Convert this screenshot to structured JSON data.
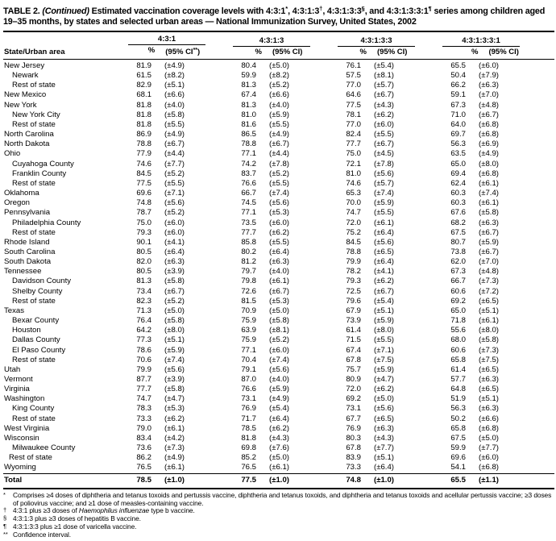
{
  "page": {
    "background": "#ffffff",
    "text_color": "#000000"
  },
  "table_title": {
    "segments": [
      {
        "text": "TABLE 2. ",
        "style": "bold"
      },
      {
        "text": "(Continued)",
        "style": "bold-italic"
      },
      {
        "text": " Estimated vaccination coverage levels with 4:3:1",
        "style": "bold"
      },
      {
        "text": "*",
        "style": "sup"
      },
      {
        "text": ", 4:3:1:3",
        "style": "bold"
      },
      {
        "text": "†",
        "style": "sup"
      },
      {
        "text": ", 4:3:1:3:3",
        "style": "bold"
      },
      {
        "text": "§",
        "style": "sup"
      },
      {
        "text": ", and 4:3:1:3:3:1",
        "style": "bold"
      },
      {
        "text": "¶",
        "style": "sup"
      },
      {
        "text": " series among children aged 19–35 months, by states and selected urban areas — National Immunization Survey, United States, 2002",
        "style": "bold"
      }
    ]
  },
  "table": {
    "stub_header": "State/Urban area",
    "column_groups": [
      {
        "label": "4:3:1",
        "pct_header": "%",
        "ci_header_pre": "(95% CI",
        "ci_header_sup": "**",
        "ci_header_post": ")"
      },
      {
        "label": "4:3:1:3",
        "pct_header": "%",
        "ci_header_pre": "(95% CI",
        "ci_header_sup": "",
        "ci_header_post": ")"
      },
      {
        "label": "4:3:1:3:3",
        "pct_header": "%",
        "ci_header_pre": "(95% CI",
        "ci_header_sup": "",
        "ci_header_post": ")"
      },
      {
        "label": "4:3:1:3:3:1",
        "pct_header": "%",
        "ci_header_pre": "(95% CI",
        "ci_header_sup": "",
        "ci_header_post": ")"
      }
    ],
    "rows": [
      {
        "label": "New Jersey",
        "indent": 0,
        "values": [
          "81.9",
          "(±4.9)",
          "80.4",
          "(±5.0)",
          "76.1",
          "(±5.4)",
          "65.5",
          "(±6.0)"
        ]
      },
      {
        "label": "Newark",
        "indent": 10,
        "values": [
          "61.5",
          "(±8.2)",
          "59.9",
          "(±8.2)",
          "57.5",
          "(±8.1)",
          "50.4",
          "(±7.9)"
        ]
      },
      {
        "label": "Rest of state",
        "indent": 10,
        "values": [
          "82.9",
          "(±5.1)",
          "81.3",
          "(±5.2)",
          "77.0",
          "(±5.7)",
          "66.2",
          "(±6.3)"
        ]
      },
      {
        "label": "New Mexico",
        "indent": 0,
        "values": [
          "68.1",
          "(±6.6)",
          "67.4",
          "(±6.6)",
          "64.6",
          "(±6.7)",
          "59.1",
          "(±7.0)"
        ]
      },
      {
        "label": "New York",
        "indent": 0,
        "values": [
          "81.8",
          "(±4.0)",
          "81.3",
          "(±4.0)",
          "77.5",
          "(±4.3)",
          "67.3",
          "(±4.8)"
        ]
      },
      {
        "label": "New York City",
        "indent": 10,
        "values": [
          "81.8",
          "(±5.8)",
          "81.0",
          "(±5.9)",
          "78.1",
          "(±6.2)",
          "71.0",
          "(±6.7)"
        ]
      },
      {
        "label": "Rest of state",
        "indent": 10,
        "values": [
          "81.8",
          "(±5.5)",
          "81.6",
          "(±5.5)",
          "77.0",
          "(±6.0)",
          "64.0",
          "(±6.8)"
        ]
      },
      {
        "label": "North Carolina",
        "indent": 0,
        "values": [
          "86.9",
          "(±4.9)",
          "86.5",
          "(±4.9)",
          "82.4",
          "(±5.5)",
          "69.7",
          "(±6.8)"
        ]
      },
      {
        "label": "North Dakota",
        "indent": 0,
        "values": [
          "78.8",
          "(±6.7)",
          "78.8",
          "(±6.7)",
          "77.7",
          "(±6.7)",
          "56.3",
          "(±6.9)"
        ]
      },
      {
        "label": "Ohio",
        "indent": 0,
        "values": [
          "77.9",
          "(±4.4)",
          "77.1",
          "(±4.4)",
          "75.0",
          "(±4.5)",
          "63.5",
          "(±4.9)"
        ]
      },
      {
        "label": "Cuyahoga County",
        "indent": 10,
        "values": [
          "74.6",
          "(±7.7)",
          "74.2",
          "(±7.8)",
          "72.1",
          "(±7.8)",
          "65.0",
          "(±8.0)"
        ]
      },
      {
        "label": "Franklin County",
        "indent": 10,
        "values": [
          "84.5",
          "(±5.2)",
          "83.7",
          "(±5.2)",
          "81.0",
          "(±5.6)",
          "69.4",
          "(±6.8)"
        ]
      },
      {
        "label": "Rest of state",
        "indent": 10,
        "values": [
          "77.5",
          "(±5.5)",
          "76.6",
          "(±5.5)",
          "74.6",
          "(±5.7)",
          "62.4",
          "(±6.1)"
        ]
      },
      {
        "label": "Oklahoma",
        "indent": 0,
        "values": [
          "69.6",
          "(±7.1)",
          "66.7",
          "(±7.4)",
          "65.3",
          "(±7.4)",
          "60.3",
          "(±7.4)"
        ]
      },
      {
        "label": "Oregon",
        "indent": 0,
        "values": [
          "74.8",
          "(±5.6)",
          "74.5",
          "(±5.6)",
          "70.0",
          "(±5.9)",
          "60.3",
          "(±6.1)"
        ]
      },
      {
        "label": "Pennsylvania",
        "indent": 0,
        "values": [
          "78.7",
          "(±5.2)",
          "77.1",
          "(±5.3)",
          "74.7",
          "(±5.5)",
          "67.6",
          "(±5.8)"
        ]
      },
      {
        "label": "Philadelphia County",
        "indent": 10,
        "values": [
          "75.0",
          "(±6.0)",
          "73.5",
          "(±6.0)",
          "72.0",
          "(±6.1)",
          "68.2",
          "(±6.3)"
        ]
      },
      {
        "label": "Rest of state",
        "indent": 10,
        "values": [
          "79.3",
          "(±6.0)",
          "77.7",
          "(±6.2)",
          "75.2",
          "(±6.4)",
          "67.5",
          "(±6.7)"
        ]
      },
      {
        "label": "Rhode Island",
        "indent": 0,
        "values": [
          "90.1",
          "(±4.1)",
          "85.8",
          "(±5.5)",
          "84.5",
          "(±5.6)",
          "80.7",
          "(±5.9)"
        ]
      },
      {
        "label": "South Carolina",
        "indent": 0,
        "values": [
          "80.5",
          "(±6.4)",
          "80.2",
          "(±6.4)",
          "78.8",
          "(±6.5)",
          "73.8",
          "(±6.7)"
        ]
      },
      {
        "label": "South Dakota",
        "indent": 0,
        "values": [
          "82.0",
          "(±6.3)",
          "81.2",
          "(±6.3)",
          "79.9",
          "(±6.4)",
          "62.0",
          "(±7.0)"
        ]
      },
      {
        "label": "Tennessee",
        "indent": 0,
        "values": [
          "80.5",
          "(±3.9)",
          "79.7",
          "(±4.0)",
          "78.2",
          "(±4.1)",
          "67.3",
          "(±4.8)"
        ]
      },
      {
        "label": "Davidson County",
        "indent": 10,
        "values": [
          "81.3",
          "(±5.8)",
          "79.8",
          "(±6.1)",
          "79.3",
          "(±6.2)",
          "66.7",
          "(±7.3)"
        ]
      },
      {
        "label": "Shelby County",
        "indent": 10,
        "values": [
          "73.4",
          "(±6.7)",
          "72.6",
          "(±6.7)",
          "72.5",
          "(±6.7)",
          "60.6",
          "(±7.2)"
        ]
      },
      {
        "label": "Rest of state",
        "indent": 10,
        "values": [
          "82.3",
          "(±5.2)",
          "81.5",
          "(±5.3)",
          "79.6",
          "(±5.4)",
          "69.2",
          "(±6.5)"
        ]
      },
      {
        "label": "Texas",
        "indent": 0,
        "values": [
          "71.3",
          "(±5.0)",
          "70.9",
          "(±5.0)",
          "67.9",
          "(±5.1)",
          "65.0",
          "(±5.1)"
        ]
      },
      {
        "label": "Bexar County",
        "indent": 10,
        "values": [
          "76.4",
          "(±5.8)",
          "75.9",
          "(±5.8)",
          "73.9",
          "(±5.9)",
          "71.8",
          "(±6.1)"
        ]
      },
      {
        "label": "Houston",
        "indent": 10,
        "values": [
          "64.2",
          "(±8.0)",
          "63.9",
          "(±8.1)",
          "61.4",
          "(±8.0)",
          "55.6",
          "(±8.0)"
        ]
      },
      {
        "label": "Dallas County",
        "indent": 10,
        "values": [
          "77.3",
          "(±5.1)",
          "75.9",
          "(±5.2)",
          "71.5",
          "(±5.5)",
          "68.0",
          "(±5.8)"
        ]
      },
      {
        "label": "El Paso County",
        "indent": 10,
        "values": [
          "78.6",
          "(±5.9)",
          "77.1",
          "(±6.0)",
          "67.4",
          "(±7.1)",
          "60.6",
          "(±7.3)"
        ]
      },
      {
        "label": "Rest of state",
        "indent": 10,
        "values": [
          "70.6",
          "(±7.4)",
          "70.4",
          "(±7.4)",
          "67.8",
          "(±7.5)",
          "65.8",
          "(±7.5)"
        ]
      },
      {
        "label": "Utah",
        "indent": 0,
        "values": [
          "79.9",
          "(±5.6)",
          "79.1",
          "(±5.6)",
          "75.7",
          "(±5.9)",
          "61.4",
          "(±6.5)"
        ]
      },
      {
        "label": "Vermont",
        "indent": 0,
        "values": [
          "87.7",
          "(±3.9)",
          "87.0",
          "(±4.0)",
          "80.9",
          "(±4.7)",
          "57.7",
          "(±6.3)"
        ]
      },
      {
        "label": "Virginia",
        "indent": 0,
        "values": [
          "77.7",
          "(±5.8)",
          "76.6",
          "(±5.9)",
          "72.0",
          "(±6.2)",
          "64.8",
          "(±6.5)"
        ]
      },
      {
        "label": "Washington",
        "indent": 0,
        "values": [
          "74.7",
          "(±4.7)",
          "73.1",
          "(±4.9)",
          "69.2",
          "(±5.0)",
          "51.9",
          "(±5.1)"
        ]
      },
      {
        "label": "King County",
        "indent": 10,
        "values": [
          "78.3",
          "(±5.3)",
          "76.9",
          "(±5.4)",
          "73.1",
          "(±5.6)",
          "56.3",
          "(±6.3)"
        ]
      },
      {
        "label": "Rest of state",
        "indent": 10,
        "values": [
          "73.3",
          "(±6.2)",
          "71.7",
          "(±6.4)",
          "67.7",
          "(±6.5)",
          "50.2",
          "(±6.6)"
        ]
      },
      {
        "label": "West Virginia",
        "indent": 0,
        "values": [
          "79.0",
          "(±6.1)",
          "78.5",
          "(±6.2)",
          "76.9",
          "(±6.3)",
          "65.8",
          "(±6.8)"
        ]
      },
      {
        "label": "Wisconsin",
        "indent": 0,
        "values": [
          "83.4",
          "(±4.2)",
          "81.8",
          "(±4.3)",
          "80.3",
          "(±4.3)",
          "67.5",
          "(±5.0)"
        ]
      },
      {
        "label": "Milwaukee County",
        "indent": 10,
        "values": [
          "73.6",
          "(±7.3)",
          "69.8",
          "(±7.6)",
          "67.8",
          "(±7.7)",
          "59.9",
          "(±7.7)"
        ]
      },
      {
        "label": "Rest of state",
        "indent": 6,
        "values": [
          "86.2",
          "(±4.9)",
          "85.2",
          "(±5.0)",
          "83.9",
          "(±5.1)",
          "69.6",
          "(±6.0)"
        ]
      },
      {
        "label": "Wyoming",
        "indent": 0,
        "values": [
          "76.5",
          "(±6.1)",
          "76.5",
          "(±6.1)",
          "73.3",
          "(±6.4)",
          "54.1",
          "(±6.8)"
        ]
      }
    ],
    "total_row": {
      "label": "Total",
      "values": [
        "78.5",
        "(±1.0)",
        "77.5",
        "(±1.0)",
        "74.8",
        "(±1.0)",
        "65.5",
        "(±1.1)"
      ]
    }
  },
  "footnotes": [
    {
      "marker": "*",
      "text_pre": "Comprises ≥4 doses of diphtheria and tetanus toxoids and pertussis vaccine, diphtheria and tetanus toxoids, and diphtheria and tetanus toxoids and acellular pertussis vaccine; ≥3 doses of poliovirus vaccine; and ≥1 dose of measles-containing vaccine.",
      "text_italic": "",
      "text_post": ""
    },
    {
      "marker": "†",
      "text_pre": "4:3:1 plus ≥3 doses of ",
      "text_italic": "Haemophilus influenzae",
      "text_post": " type b vaccine."
    },
    {
      "marker": "§",
      "text_pre": "4:3:1:3 plus ≥3 doses of hepatitis B vaccine.",
      "text_italic": "",
      "text_post": ""
    },
    {
      "marker": "¶",
      "text_pre": "4:3:1:3:3 plus ≥1 dose of varicella vaccine.",
      "text_italic": "",
      "text_post": ""
    },
    {
      "marker": "**",
      "text_pre": "Confidence interval.",
      "text_italic": "",
      "text_post": ""
    }
  ]
}
